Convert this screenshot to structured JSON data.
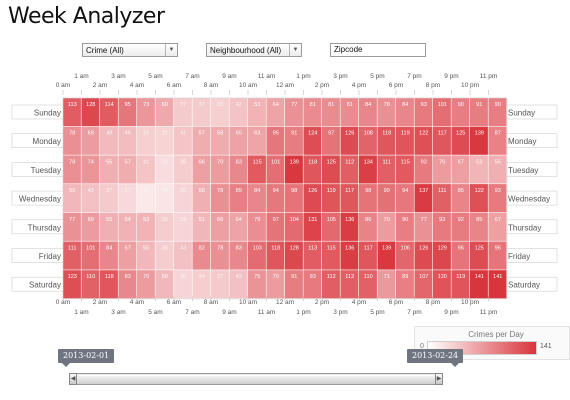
{
  "page": {
    "title": "Week Analyzer"
  },
  "filters": {
    "crime": "Crime (All)",
    "neighbourhood": "Neighbourhood (All)",
    "zipcode_placeholder": "Zipcode"
  },
  "chart_data": {
    "type": "heatmap",
    "title": "",
    "hours": [
      "0 am",
      "1 am",
      "2 am",
      "3 am",
      "4 am",
      "5 am",
      "6 am",
      "7 am",
      "8 am",
      "9 am",
      "10 am",
      "11 am",
      "12 am",
      "1 pm",
      "2 pm",
      "3 pm",
      "4 pm",
      "5 pm",
      "6 pm",
      "7 pm",
      "8 pm",
      "9 pm",
      "10 pm",
      "11 pm"
    ],
    "days": [
      "Sunday",
      "Monday",
      "Tuesday",
      "Wednesday",
      "Thursday",
      "Friday",
      "Saturday"
    ],
    "values": [
      [
        113,
        128,
        114,
        95,
        73,
        60,
        37,
        37,
        33,
        42,
        53,
        64,
        77,
        81,
        81,
        81,
        84,
        78,
        84,
        93,
        101,
        90,
        91,
        90
      ],
      [
        78,
        69,
        48,
        46,
        33,
        31,
        41,
        57,
        58,
        65,
        63,
        95,
        91,
        124,
        97,
        126,
        108,
        118,
        119,
        122,
        117,
        125,
        139,
        87
      ],
      [
        78,
        74,
        55,
        57,
        41,
        24,
        35,
        66,
        70,
        83,
        115,
        101,
        139,
        118,
        125,
        112,
        134,
        111,
        115,
        93,
        70,
        67,
        52,
        55
      ],
      [
        50,
        43,
        37,
        27,
        16,
        18,
        30,
        56,
        78,
        89,
        84,
        94,
        98,
        126,
        119,
        117,
        98,
        99,
        94,
        137,
        111,
        85,
        122,
        93
      ],
      [
        77,
        69,
        55,
        54,
        53,
        35,
        29,
        51,
        66,
        64,
        79,
        97,
        104,
        131,
        105,
        136,
        86,
        70,
        90,
        77,
        93,
        92,
        85,
        67
      ],
      [
        111,
        101,
        84,
        67,
        50,
        35,
        43,
        82,
        78,
        83,
        103,
        118,
        128,
        113,
        115,
        136,
        117,
        139,
        106,
        126,
        129,
        96,
        125,
        96
      ],
      [
        123,
        110,
        118,
        83,
        70,
        50,
        30,
        34,
        37,
        43,
        75,
        70,
        91,
        93,
        112,
        112,
        110,
        71,
        89,
        107,
        120,
        119,
        141,
        141
      ]
    ],
    "color_scale": {
      "min": 0,
      "max": 141,
      "min_color": "#ffffff",
      "max_color": "#d9353c"
    },
    "legend": {
      "title": "Crimes per Day",
      "min_label": "0",
      "max_label": "141"
    }
  },
  "date_range": {
    "start": "2013-02-01",
    "end": "2013-02-24"
  }
}
